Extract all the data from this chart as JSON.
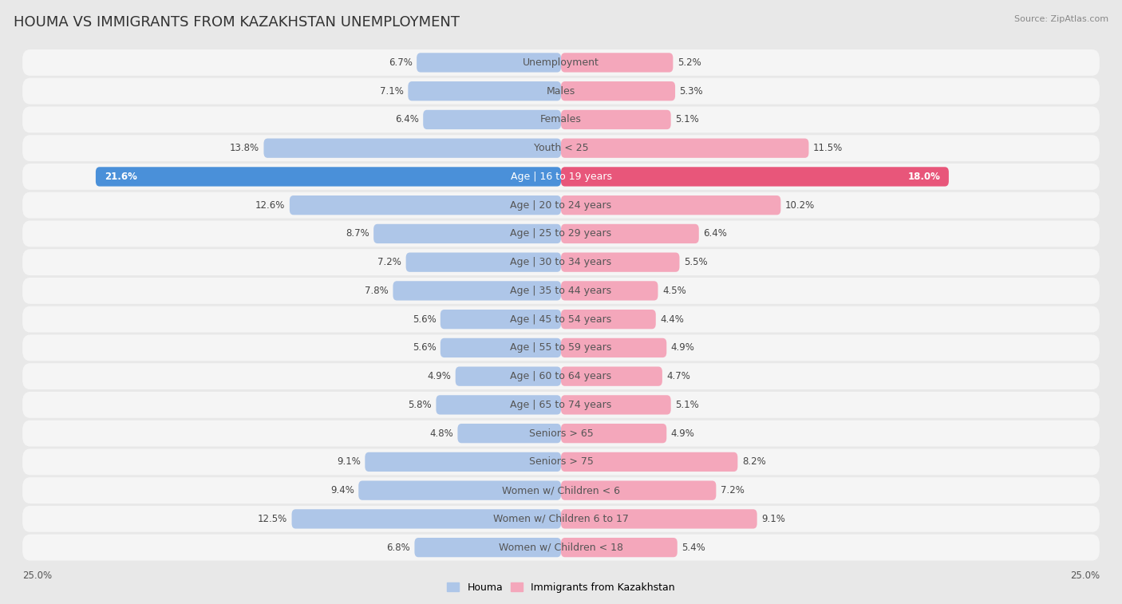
{
  "title": "HOUMA VS IMMIGRANTS FROM KAZAKHSTAN UNEMPLOYMENT",
  "source": "Source: ZipAtlas.com",
  "categories": [
    "Unemployment",
    "Males",
    "Females",
    "Youth < 25",
    "Age | 16 to 19 years",
    "Age | 20 to 24 years",
    "Age | 25 to 29 years",
    "Age | 30 to 34 years",
    "Age | 35 to 44 years",
    "Age | 45 to 54 years",
    "Age | 55 to 59 years",
    "Age | 60 to 64 years",
    "Age | 65 to 74 years",
    "Seniors > 65",
    "Seniors > 75",
    "Women w/ Children < 6",
    "Women w/ Children 6 to 17",
    "Women w/ Children < 18"
  ],
  "houma_values": [
    6.7,
    7.1,
    6.4,
    13.8,
    21.6,
    12.6,
    8.7,
    7.2,
    7.8,
    5.6,
    5.6,
    4.9,
    5.8,
    4.8,
    9.1,
    9.4,
    12.5,
    6.8
  ],
  "kazakhstan_values": [
    5.2,
    5.3,
    5.1,
    11.5,
    18.0,
    10.2,
    6.4,
    5.5,
    4.5,
    4.4,
    4.9,
    4.7,
    5.1,
    4.9,
    8.2,
    7.2,
    9.1,
    5.4
  ],
  "houma_color": "#aec6e8",
  "kazakhstan_color": "#f4a7bb",
  "houma_highlight_color": "#4a90d9",
  "kazakhstan_highlight_color": "#e8567a",
  "axis_limit": 25.0,
  "bg_color": "#e8e8e8",
  "bar_bg_color": "#f5f5f5",
  "title_fontsize": 13,
  "label_fontsize": 9,
  "value_fontsize": 8.5,
  "legend_label_houma": "Houma",
  "legend_label_kazakhstan": "Immigrants from Kazakhstan",
  "highlight_idx": 4
}
